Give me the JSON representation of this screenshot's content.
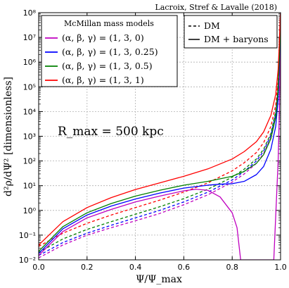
{
  "chart_data": {
    "type": "line",
    "corner_note": "Lacroix, Stref & Lavalle (2018)",
    "annotation": "R_max = 500 kpc",
    "xlabel": "Ψ/Ψ_max",
    "ylabel": "d²ρ/dΨ² [dimensionless]",
    "xlim": [
      0,
      1
    ],
    "ylim": [
      0.01,
      100000000
    ],
    "yscale": "log",
    "grid": true,
    "x_ticks": [
      "0.0",
      "0.2",
      "0.4",
      "0.6",
      "0.8",
      "1.0"
    ],
    "y_ticks": [
      "10⁻²",
      "10⁻¹",
      "10⁰",
      "10¹",
      "10²",
      "10³",
      "10⁴",
      "10⁵",
      "10⁶",
      "10⁷",
      "10⁸"
    ],
    "legend_models": {
      "title": "McMillan mass models",
      "placement": "top-left",
      "entries": [
        {
          "label": "(α, β, γ) = (1, 3, 0)",
          "color": "#bf00bf"
        },
        {
          "label": "(α, β, γ) = (1, 3, 0.25)",
          "color": "#0000ff"
        },
        {
          "label": "(α, β, γ) = (1, 3, 0.5)",
          "color": "#008000"
        },
        {
          "label": "(α, β, γ) = (1, 3, 1)",
          "color": "#ff0000"
        }
      ]
    },
    "legend_styles": {
      "placement": "top-right",
      "entries": [
        {
          "label": "DM",
          "style": "dashed"
        },
        {
          "label": "DM + baryons",
          "style": "solid"
        }
      ]
    },
    "series": [
      {
        "model": "(α, β, γ) = (1, 3, 0)",
        "style": "dashed",
        "color": "#bf00bf",
        "points": [
          [
            0,
            0.012
          ],
          [
            0.1,
            0.04
          ],
          [
            0.2,
            0.1
          ],
          [
            0.3,
            0.2
          ],
          [
            0.4,
            0.38
          ],
          [
            0.5,
            0.75
          ],
          [
            0.6,
            1.7
          ],
          [
            0.7,
            4.3
          ],
          [
            0.8,
            14
          ],
          [
            0.85,
            30
          ],
          [
            0.9,
            80
          ],
          [
            0.93,
            200
          ],
          [
            0.96,
            900
          ],
          [
            0.98,
            6000
          ],
          [
            0.99,
            60000
          ],
          [
            0.995,
            1000000
          ],
          [
            0.998,
            20000000
          ],
          [
            1.0,
            100000000
          ]
        ]
      },
      {
        "model": "(α, β, γ) = (1, 3, 0.25)",
        "style": "dashed",
        "color": "#0000ff",
        "points": [
          [
            0,
            0.015
          ],
          [
            0.1,
            0.05
          ],
          [
            0.2,
            0.12
          ],
          [
            0.3,
            0.25
          ],
          [
            0.4,
            0.5
          ],
          [
            0.5,
            1.0
          ],
          [
            0.6,
            2.2
          ],
          [
            0.7,
            5.5
          ],
          [
            0.8,
            17
          ],
          [
            0.85,
            38
          ],
          [
            0.9,
            100
          ],
          [
            0.93,
            250
          ],
          [
            0.96,
            1100
          ],
          [
            0.98,
            8000
          ],
          [
            0.99,
            80000
          ],
          [
            0.995,
            1500000
          ],
          [
            0.998,
            25000000
          ],
          [
            1.0,
            100000000
          ]
        ]
      },
      {
        "model": "(α, β, γ) = (1, 3, 0.5)",
        "style": "dashed",
        "color": "#008000",
        "points": [
          [
            0,
            0.02
          ],
          [
            0.1,
            0.07
          ],
          [
            0.2,
            0.17
          ],
          [
            0.3,
            0.35
          ],
          [
            0.4,
            0.7
          ],
          [
            0.5,
            1.4
          ],
          [
            0.6,
            3.0
          ],
          [
            0.7,
            7.2
          ],
          [
            0.8,
            22
          ],
          [
            0.85,
            47
          ],
          [
            0.9,
            120
          ],
          [
            0.93,
            300
          ],
          [
            0.96,
            1300
          ],
          [
            0.98,
            10000
          ],
          [
            0.99,
            100000
          ],
          [
            0.995,
            2000000
          ],
          [
            0.998,
            30000000
          ],
          [
            1.0,
            100000000
          ]
        ]
      },
      {
        "model": "(α, β, γ) = (1, 3, 1)",
        "style": "dashed",
        "color": "#ff0000",
        "points": [
          [
            0,
            0.035
          ],
          [
            0.1,
            0.12
          ],
          [
            0.2,
            0.3
          ],
          [
            0.3,
            0.65
          ],
          [
            0.4,
            1.3
          ],
          [
            0.5,
            2.6
          ],
          [
            0.6,
            5.5
          ],
          [
            0.7,
            13
          ],
          [
            0.8,
            40
          ],
          [
            0.85,
            85
          ],
          [
            0.9,
            220
          ],
          [
            0.93,
            550
          ],
          [
            0.96,
            2500
          ],
          [
            0.98,
            18000
          ],
          [
            0.99,
            180000
          ],
          [
            0.995,
            3000000
          ],
          [
            0.998,
            40000000
          ],
          [
            1.0,
            100000000
          ]
        ]
      },
      {
        "model": "(α, β, γ) = (1, 3, 0)",
        "style": "solid",
        "color": "#bf00bf",
        "points": [
          [
            0,
            0.015
          ],
          [
            0.1,
            0.14
          ],
          [
            0.2,
            0.5
          ],
          [
            0.3,
            1.1
          ],
          [
            0.4,
            2.2
          ],
          [
            0.5,
            3.8
          ],
          [
            0.6,
            6.2
          ],
          [
            0.65,
            7.2
          ],
          [
            0.7,
            6.5
          ],
          [
            0.75,
            3.5
          ],
          [
            0.8,
            0.8
          ],
          [
            0.82,
            0.2
          ],
          [
            0.835,
            0.01
          ],
          [
            0.972,
            0.01
          ],
          [
            0.98,
            0.6
          ],
          [
            0.99,
            100
          ],
          [
            0.995,
            10000
          ],
          [
            0.998,
            1000000
          ],
          [
            1.0,
            100000000
          ]
        ]
      },
      {
        "model": "(α, β, γ) = (1, 3, 0.25)",
        "style": "solid",
        "color": "#0000ff",
        "points": [
          [
            0,
            0.018
          ],
          [
            0.1,
            0.18
          ],
          [
            0.2,
            0.65
          ],
          [
            0.3,
            1.5
          ],
          [
            0.4,
            2.9
          ],
          [
            0.5,
            5.0
          ],
          [
            0.6,
            8.0
          ],
          [
            0.7,
            10.5
          ],
          [
            0.75,
            11.5
          ],
          [
            0.8,
            12
          ],
          [
            0.85,
            15
          ],
          [
            0.9,
            28
          ],
          [
            0.93,
            60
          ],
          [
            0.96,
            300
          ],
          [
            0.98,
            2500
          ],
          [
            0.99,
            30000
          ],
          [
            0.995,
            800000
          ],
          [
            0.998,
            20000000
          ],
          [
            1.0,
            100000000
          ]
        ]
      },
      {
        "model": "(α, β, γ) = (1, 3, 0.5)",
        "style": "solid",
        "color": "#008000",
        "points": [
          [
            0,
            0.022
          ],
          [
            0.1,
            0.22
          ],
          [
            0.2,
            0.8
          ],
          [
            0.3,
            1.9
          ],
          [
            0.4,
            3.8
          ],
          [
            0.5,
            6.5
          ],
          [
            0.6,
            10.5
          ],
          [
            0.7,
            15
          ],
          [
            0.8,
            24
          ],
          [
            0.85,
            38
          ],
          [
            0.9,
            80
          ],
          [
            0.93,
            180
          ],
          [
            0.96,
            800
          ],
          [
            0.98,
            6000
          ],
          [
            0.99,
            80000
          ],
          [
            0.995,
            1500000
          ],
          [
            0.998,
            25000000
          ],
          [
            1.0,
            100000000
          ]
        ]
      },
      {
        "model": "(α, β, γ) = (1, 3, 1)",
        "style": "solid",
        "color": "#ff0000",
        "points": [
          [
            0,
            0.04
          ],
          [
            0.1,
            0.35
          ],
          [
            0.2,
            1.3
          ],
          [
            0.3,
            3.3
          ],
          [
            0.4,
            7.0
          ],
          [
            0.5,
            13
          ],
          [
            0.6,
            24
          ],
          [
            0.7,
            48
          ],
          [
            0.8,
            120
          ],
          [
            0.85,
            240
          ],
          [
            0.9,
            600
          ],
          [
            0.93,
            1500
          ],
          [
            0.96,
            7000
          ],
          [
            0.98,
            50000
          ],
          [
            0.99,
            500000
          ],
          [
            0.995,
            6000000
          ],
          [
            0.998,
            50000000
          ],
          [
            1.0,
            100000000
          ]
        ]
      }
    ]
  }
}
